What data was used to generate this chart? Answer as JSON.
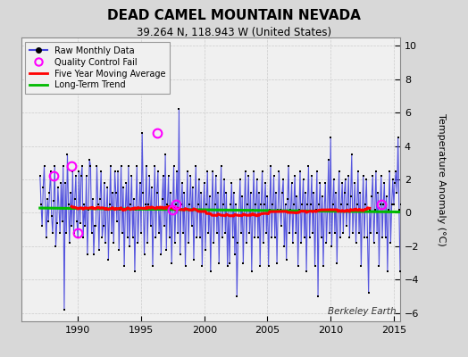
{
  "title": "DEAD CAMEL MOUNTAIN NEVADA",
  "subtitle": "39.264 N, 118.943 W (United States)",
  "ylabel": "Temperature Anomaly (°C)",
  "watermark": "Berkeley Earth",
  "xlim": [
    1985.5,
    2015.5
  ],
  "ylim": [
    -6.5,
    10.5
  ],
  "yticks": [
    -6,
    -4,
    -2,
    0,
    2,
    4,
    6,
    8,
    10
  ],
  "xticks": [
    1990,
    1995,
    2000,
    2005,
    2010,
    2015
  ],
  "bg_color": "#d8d8d8",
  "plot_bg_color": "#f0f0f0",
  "raw_line_color": "#4444dd",
  "raw_dot_color": "#000000",
  "moving_avg_color": "#ff0000",
  "trend_color": "#00bb00",
  "qc_fail_color": "#ff00ff",
  "start_year": 1987.0,
  "raw_data": [
    2.2,
    0.5,
    -0.8,
    1.5,
    2.8,
    0.3,
    -1.5,
    0.8,
    -0.5,
    1.2,
    2.5,
    -0.2,
    -1.2,
    0.7,
    2.8,
    -2.0,
    -0.6,
    1.5,
    0.3,
    -1.2,
    1.8,
    -0.5,
    2.8,
    -5.8,
    1.8,
    -1.2,
    3.5,
    0.5,
    -1.8,
    1.2,
    -0.8,
    2.5,
    -1.2,
    0.8,
    2.2,
    -0.5,
    -1.5,
    2.5,
    -0.6,
    2.2,
    2.8,
    -1.5,
    0.5,
    -0.8,
    2.2,
    -2.5,
    0.2,
    3.2,
    2.8,
    -1.2,
    0.8,
    -2.5,
    -0.8,
    -0.8,
    2.8,
    0.5,
    -2.2,
    0.8,
    2.5,
    -1.5,
    -0.8,
    1.8,
    -1.8,
    0.2,
    1.5,
    -2.8,
    0.5,
    2.8,
    -1.2,
    1.2,
    -1.8,
    2.5,
    1.2,
    -0.5,
    2.5,
    -2.2,
    0.2,
    2.8,
    -1.2,
    1.5,
    -3.2,
    0.2,
    1.8,
    -1.5,
    2.8,
    -2.0,
    0.5,
    2.2,
    -1.5,
    0.8,
    -3.5,
    0.2,
    2.8,
    -1.8,
    0.2,
    1.8,
    -1.2,
    4.8,
    1.2,
    -2.5,
    0.5,
    2.8,
    -1.8,
    0.5,
    2.2,
    -0.8,
    1.5,
    -3.2,
    0.2,
    2.8,
    -1.5,
    1.2,
    2.5,
    -1.2,
    0.2,
    -2.5,
    0.8,
    2.2,
    -0.8,
    3.5,
    -2.2,
    0.5,
    2.2,
    -1.5,
    1.2,
    -3.0,
    0.2,
    2.8,
    -1.8,
    0.5,
    2.5,
    -1.2,
    6.2,
    -2.5,
    0.5,
    1.8,
    -1.2,
    1.2,
    -3.2,
    0.2,
    2.5,
    -1.8,
    0.5,
    2.2,
    -0.8,
    1.5,
    -2.8,
    0.2,
    2.8,
    -1.5,
    0.5,
    2.0,
    -1.5,
    1.2,
    -3.2,
    0.2,
    1.8,
    -2.2,
    0.5,
    2.5,
    -1.2,
    1.0,
    -3.5,
    0.2,
    2.5,
    -1.8,
    0.5,
    2.2,
    -1.2,
    1.2,
    -3.0,
    0.2,
    2.8,
    -1.5,
    0.5,
    2.0,
    -1.2,
    1.2,
    -3.2,
    0.2,
    -3.0,
    0.5,
    1.8,
    -1.5,
    1.2,
    -2.5,
    0.5,
    -5.0,
    -1.8,
    0.2,
    2.0,
    -1.2,
    1.0,
    -3.0,
    0.2,
    2.5,
    -1.8,
    0.5,
    2.2,
    -1.2,
    1.2,
    -3.5,
    0.2,
    2.5,
    -1.5,
    0.5,
    2.0,
    -1.5,
    1.2,
    -3.2,
    0.5,
    2.5,
    -1.8,
    0.5,
    1.8,
    -1.2,
    1.0,
    -3.2,
    0.2,
    2.8,
    -1.5,
    0.5,
    2.2,
    -1.5,
    1.2,
    -3.0,
    0.2,
    2.5,
    0.2,
    -0.8,
    1.2,
    2.0,
    -2.0,
    0.5,
    -2.8,
    0.8,
    2.8,
    -1.2,
    0.2,
    1.8,
    -1.8,
    0.5,
    2.2,
    -1.2,
    1.0,
    -3.2,
    0.2,
    2.5,
    -1.8,
    0.5,
    2.0,
    -1.5,
    1.2,
    -3.5,
    0.5,
    2.8,
    -1.5,
    0.5,
    2.2,
    -1.2,
    1.2,
    -3.2,
    0.2,
    2.5,
    -5.0,
    0.5,
    1.8,
    -1.5,
    1.0,
    -3.2,
    0.2,
    1.8,
    -1.8,
    0.2,
    3.2,
    -1.2,
    4.5,
    -2.0,
    0.5,
    2.0,
    -1.2,
    1.2,
    -3.0,
    0.2,
    2.5,
    -1.5,
    0.5,
    1.8,
    -1.2,
    1.2,
    2.0,
    -0.8,
    0.5,
    2.2,
    -1.5,
    1.0,
    3.5,
    -1.2,
    0.2,
    1.8,
    -1.8,
    0.5,
    2.5,
    -1.2,
    1.2,
    -3.2,
    0.2,
    2.2,
    -1.5,
    0.5,
    2.0,
    -1.5,
    -4.8,
    0.2,
    -1.2,
    1.0,
    2.2,
    -1.8,
    0.2,
    2.5,
    -1.2,
    1.2,
    -3.2,
    0.5,
    2.2,
    -1.5,
    0.5,
    1.8,
    -1.5,
    1.0,
    -3.5,
    0.2,
    2.5,
    -1.8,
    0.5,
    2.0,
    0.5,
    1.8,
    2.5,
    1.2,
    4.5,
    0.2,
    -3.5,
    0.5
  ],
  "qc_fail_times": [
    1988.08,
    1989.5,
    1990.0,
    1996.25,
    1997.5,
    1997.75,
    2014.0
  ],
  "qc_fail_values": [
    2.2,
    2.8,
    -1.2,
    4.8,
    0.2,
    0.5,
    0.5
  ]
}
